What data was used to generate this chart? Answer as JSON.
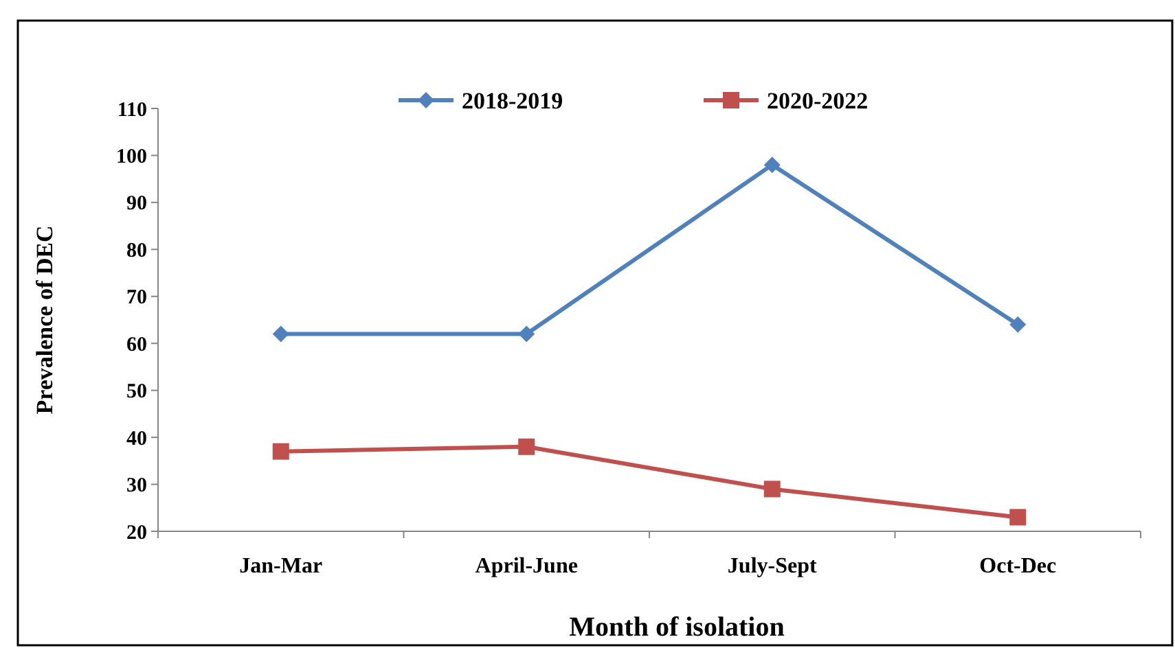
{
  "chart_data": {
    "type": "line",
    "xlabel": "Month of isolation",
    "ylabel": "Prevalence of DEC",
    "categories": [
      "Jan-Mar",
      "April-June",
      "July-Sept",
      "Oct-Dec"
    ],
    "series": [
      {
        "name": "2018-2019",
        "color": "#4f81bd",
        "values": [
          62,
          62,
          98,
          64
        ],
        "marker": "diamond"
      },
      {
        "name": "2020-2022",
        "color": "#c0504d",
        "values": [
          37,
          38,
          29,
          23
        ],
        "marker": "square"
      }
    ],
    "ylim": [
      20,
      110
    ],
    "yticks": [
      20,
      30,
      40,
      50,
      60,
      70,
      80,
      90,
      100,
      110
    ],
    "grid": false,
    "legend": "top",
    "line_style": "solid"
  }
}
